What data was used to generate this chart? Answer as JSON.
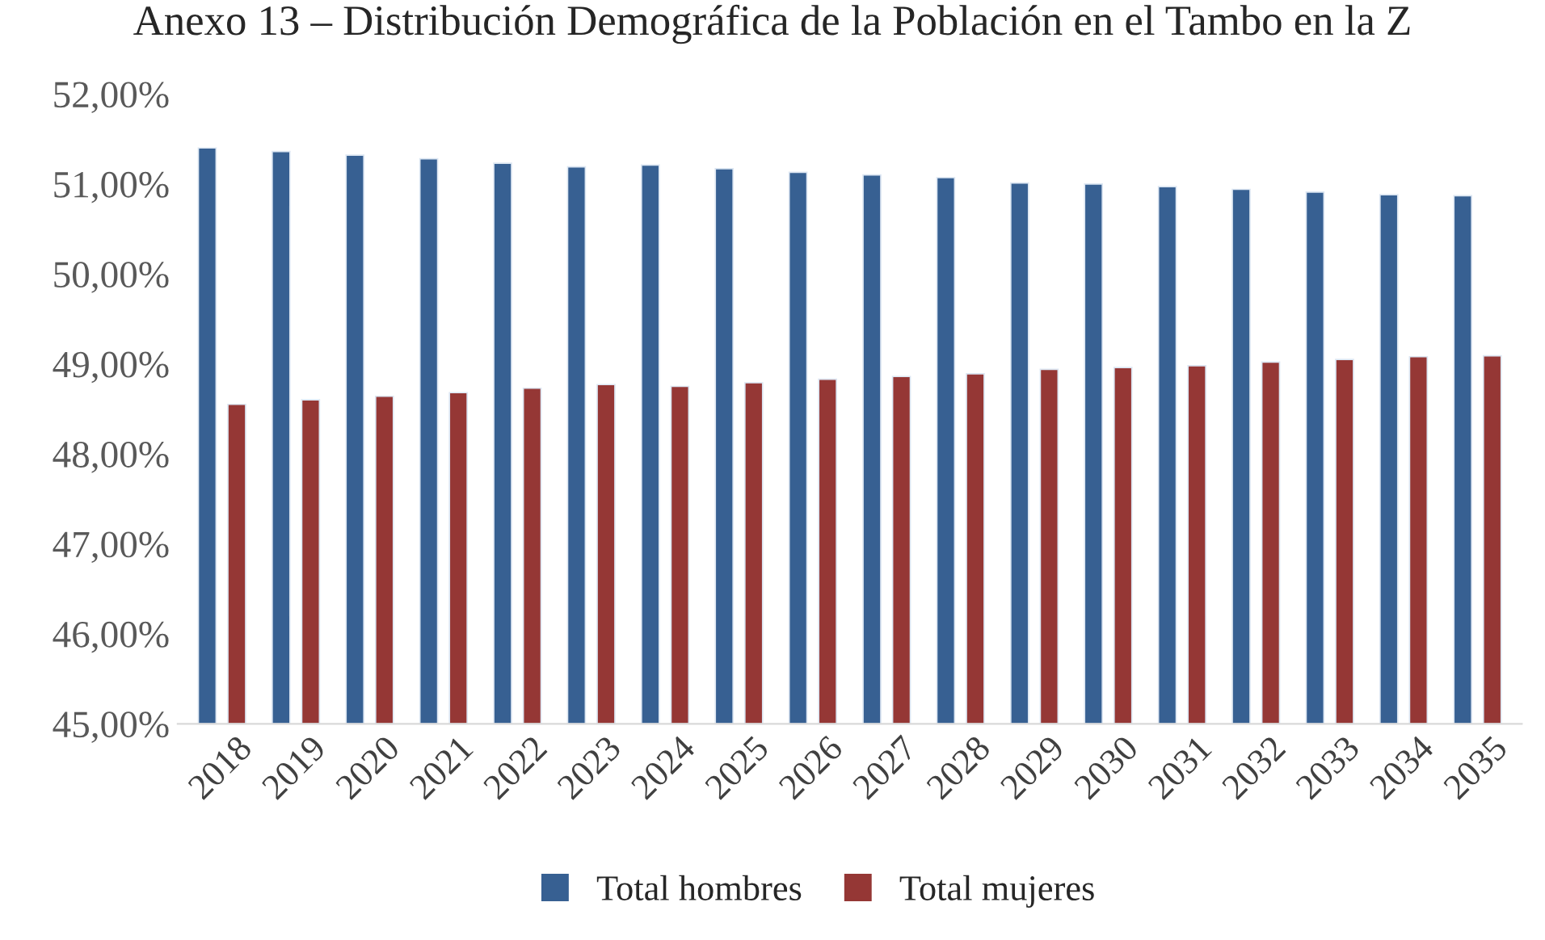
{
  "chart_data": {
    "type": "bar",
    "title": "Anexo 13 – Distribución Demográfica de la Población en el Tambo en la Z",
    "categories": [
      "2018",
      "2019",
      "2020",
      "2021",
      "2022",
      "2023",
      "2024",
      "2025",
      "2026",
      "2027",
      "2028",
      "2029",
      "2030",
      "2031",
      "2032",
      "2033",
      "2034",
      "2035"
    ],
    "series": [
      {
        "name": "Total hombres",
        "color": "#376092",
        "values": [
          51.4,
          51.36,
          51.32,
          51.28,
          51.23,
          51.19,
          51.21,
          51.17,
          51.13,
          51.1,
          51.07,
          51.01,
          51.0,
          50.97,
          50.94,
          50.91,
          50.88,
          50.87
        ]
      },
      {
        "name": "Total mujeres",
        "color": "#953735",
        "values": [
          48.55,
          48.6,
          48.64,
          48.68,
          48.73,
          48.77,
          48.75,
          48.79,
          48.83,
          48.86,
          48.89,
          48.94,
          48.96,
          48.98,
          49.02,
          49.05,
          49.08,
          49.09
        ]
      }
    ],
    "ylim": [
      45,
      52
    ],
    "yticks": [
      {
        "value": 45,
        "label": "45,00%"
      },
      {
        "value": 46,
        "label": "46,00%"
      },
      {
        "value": 47,
        "label": "47,00%"
      },
      {
        "value": 48,
        "label": "48,00%"
      },
      {
        "value": 49,
        "label": "49,00%"
      },
      {
        "value": 50,
        "label": "50,00%"
      },
      {
        "value": 51,
        "label": "51,00%"
      },
      {
        "value": 52,
        "label": "52,00%"
      }
    ],
    "grid": false,
    "legend": "bottom"
  }
}
